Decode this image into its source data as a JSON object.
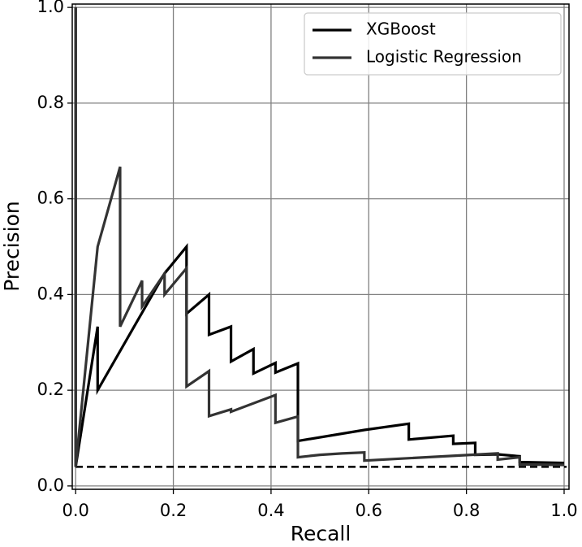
{
  "chart_data": {
    "type": "line",
    "xlabel": "Recall",
    "ylabel": "Precision",
    "xlim": [
      -0.007,
      1.01
    ],
    "ylim": [
      -0.007,
      1.007
    ],
    "xticks": [
      {
        "value": 0,
        "label": "0.0"
      },
      {
        "value": 0.2,
        "label": "0.2"
      },
      {
        "value": 0.4,
        "label": "0.4"
      },
      {
        "value": 0.6,
        "label": "0.6"
      },
      {
        "value": 0.8,
        "label": "0.8"
      },
      {
        "value": 1,
        "label": "1.0"
      }
    ],
    "yticks": [
      {
        "value": 0,
        "label": "0.0"
      },
      {
        "value": 0.2,
        "label": "0.2"
      },
      {
        "value": 0.4,
        "label": "0.4"
      },
      {
        "value": 0.6,
        "label": "0.6"
      },
      {
        "value": 0.8,
        "label": "0.8"
      },
      {
        "value": 1,
        "label": "1.0"
      }
    ],
    "grid": true,
    "legend": "upper right",
    "baseline": 0.04,
    "series": [
      {
        "name": "XGBoost",
        "color": "#000000",
        "x": [
          0,
          0,
          0.045,
          0.045,
          0.182,
          0.227,
          0.227,
          0.273,
          0.273,
          0.318,
          0.318,
          0.364,
          0.364,
          0.409,
          0.409,
          0.455,
          0.455,
          0.591,
          0.682,
          0.682,
          0.773,
          0.773,
          0.818,
          0.818,
          0.864,
          0.909,
          0.909,
          1.0
        ],
        "values": [
          1.0,
          0.04,
          0.333,
          0.2,
          0.444,
          0.5,
          0.36,
          0.4,
          0.316,
          0.333,
          0.26,
          0.286,
          0.235,
          0.257,
          0.237,
          0.256,
          0.094,
          0.117,
          0.13,
          0.097,
          0.105,
          0.088,
          0.09,
          0.065,
          0.066,
          0.062,
          0.05,
          0.048
        ]
      },
      {
        "name": "Logistic Regression",
        "color": "#333333",
        "x": [
          0,
          0,
          0.045,
          0.091,
          0.091,
          0.136,
          0.136,
          0.182,
          0.182,
          0.227,
          0.227,
          0.273,
          0.273,
          0.318,
          0.318,
          0.409,
          0.409,
          0.455,
          0.455,
          0.5,
          0.545,
          0.591,
          0.591,
          0.864,
          0.864,
          0.909,
          0.909,
          1.0
        ],
        "values": [
          1.0,
          0.04,
          0.5,
          0.667,
          0.333,
          0.429,
          0.375,
          0.444,
          0.4,
          0.455,
          0.208,
          0.24,
          0.146,
          0.16,
          0.155,
          0.19,
          0.132,
          0.145,
          0.06,
          0.065,
          0.068,
          0.07,
          0.053,
          0.068,
          0.055,
          0.06,
          0.045,
          0.044
        ]
      }
    ]
  }
}
